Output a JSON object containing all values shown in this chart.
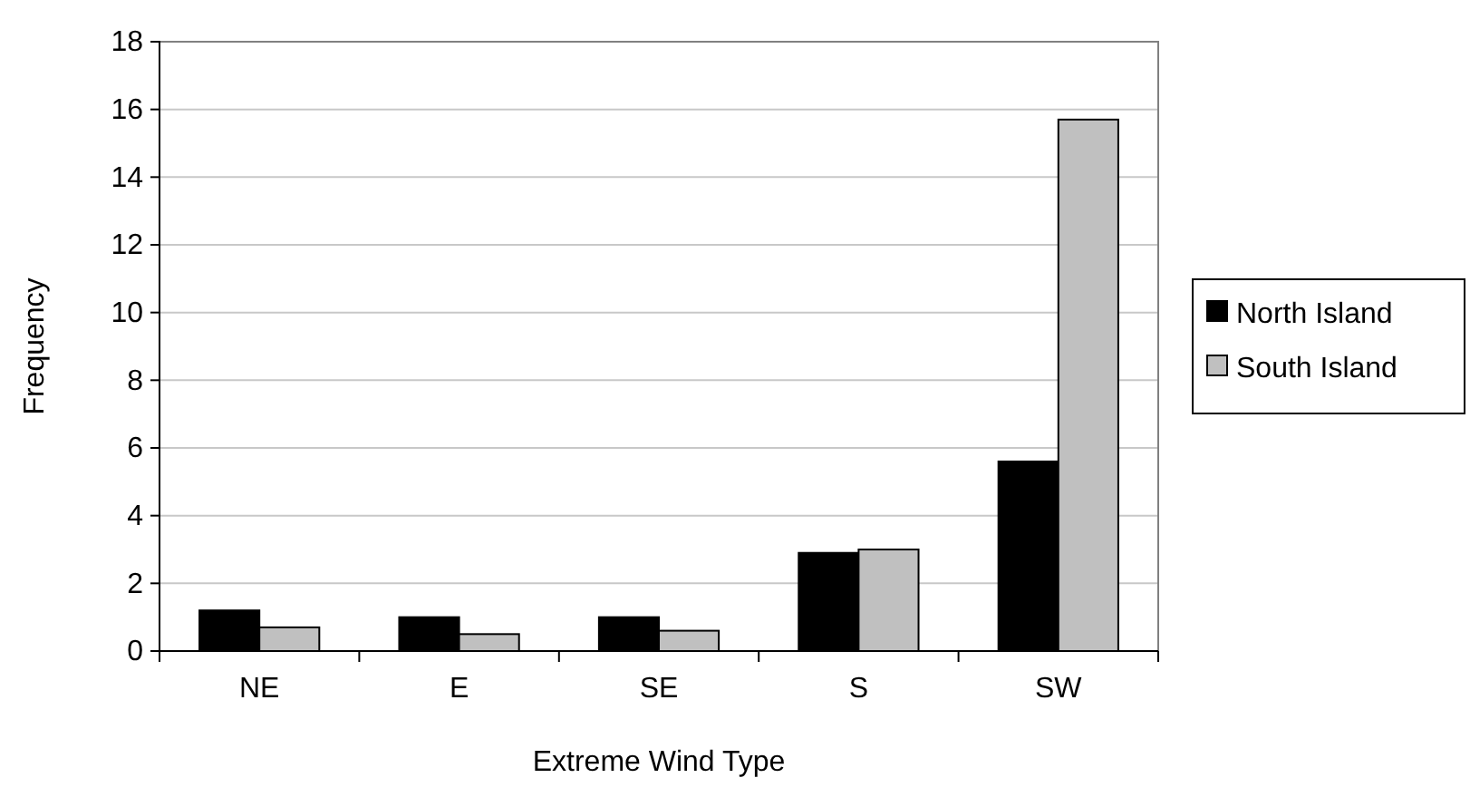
{
  "chart_data": {
    "type": "bar",
    "xlabel": "Extreme Wind Type",
    "ylabel": "Frequency",
    "categories": [
      "NE",
      "E",
      "SE",
      "S",
      "SW"
    ],
    "series": [
      {
        "name": "North Island",
        "color": "#000000",
        "values": [
          1.2,
          1.0,
          1.0,
          2.9,
          5.6
        ]
      },
      {
        "name": "South Island",
        "color": "#c0c0c0",
        "values": [
          0.7,
          0.5,
          0.6,
          3.0,
          15.7
        ]
      }
    ],
    "ylim": [
      0,
      18
    ],
    "yticks": [
      0,
      2,
      4,
      6,
      8,
      10,
      12,
      14,
      16,
      18
    ],
    "grid": "y",
    "legend": "right"
  }
}
